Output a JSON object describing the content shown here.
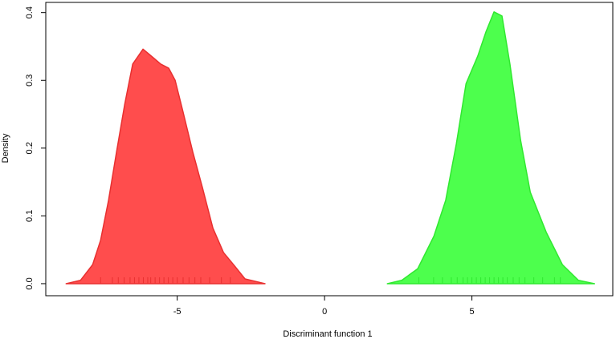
{
  "chart_data": {
    "type": "density",
    "xlabel": "Discriminant function 1",
    "ylabel": "Density",
    "xlim": [
      -9.46,
      9.78
    ],
    "ylim": [
      -0.0178,
      0.415
    ],
    "xticks": [
      -5,
      0,
      5
    ],
    "yticks": [
      {
        "value": 0,
        "label": "0.0"
      },
      0.1,
      0.2,
      0.3,
      0.4
    ],
    "series": [
      {
        "color": "#ff4d4d",
        "line_color": "#e83030",
        "x": [
          -8.77,
          -8.28,
          -7.87,
          -7.6,
          -7.33,
          -7.06,
          -6.78,
          -6.51,
          -6.16,
          -5.83,
          -5.56,
          -5.29,
          -5.07,
          -4.8,
          -4.47,
          -4.14,
          -3.79,
          -3.43,
          -3.05,
          -2.7,
          -2.02
        ],
        "values": [
          0,
          0.005,
          0.028,
          0.064,
          0.123,
          0.194,
          0.265,
          0.324,
          0.346,
          0.334,
          0.324,
          0.318,
          0.3,
          0.253,
          0.194,
          0.141,
          0.082,
          0.046,
          0.026,
          0.007,
          0
        ],
        "rug": [
          -7.6,
          -7.2,
          -7.0,
          -6.8,
          -6.6,
          -6.45,
          -6.3,
          -6.15,
          -6.0,
          -5.9,
          -5.75,
          -5.6,
          -5.45,
          -5.3,
          -5.15,
          -5.0,
          -4.8,
          -4.6,
          -4.4,
          -4.2,
          -3.9,
          -3.5,
          -3.2
        ]
      },
      {
        "color": "#4dff4d",
        "line_color": "#30e830",
        "x": [
          2.13,
          2.62,
          3.16,
          3.71,
          4.11,
          4.47,
          4.8,
          5.2,
          5.48,
          5.75,
          6.02,
          6.29,
          6.65,
          6.98,
          7.52,
          8.07,
          8.61,
          9.16
        ],
        "values": [
          0,
          0.005,
          0.022,
          0.07,
          0.123,
          0.206,
          0.295,
          0.336,
          0.372,
          0.401,
          0.395,
          0.324,
          0.212,
          0.135,
          0.076,
          0.028,
          0.005,
          0
        ],
        "rug": [
          3.2,
          3.7,
          4.0,
          4.3,
          4.5,
          4.7,
          4.85,
          5.0,
          5.15,
          5.3,
          5.45,
          5.6,
          5.75,
          5.9,
          6.05,
          6.2,
          6.4,
          6.6,
          6.8,
          7.1,
          7.4,
          7.8,
          8.0
        ]
      }
    ]
  }
}
